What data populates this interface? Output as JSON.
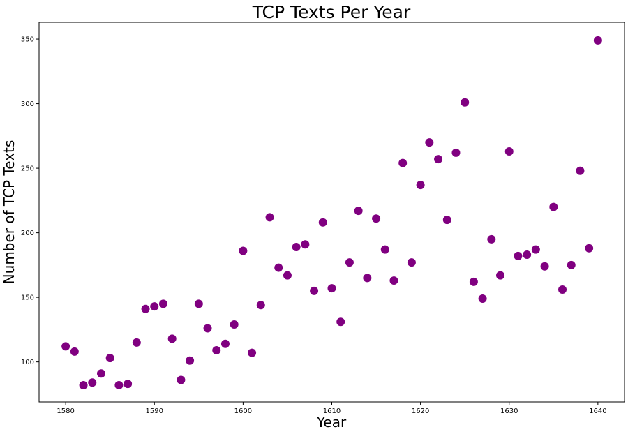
{
  "chart_data": {
    "type": "scatter",
    "title": "TCP Texts Per Year",
    "xlabel": "Year",
    "ylabel": "Number of TCP Texts",
    "xlim": [
      1577,
      1643
    ],
    "ylim": [
      69,
      363
    ],
    "xticks": [
      1580,
      1590,
      1600,
      1610,
      1620,
      1630,
      1640
    ],
    "yticks": [
      100,
      150,
      200,
      250,
      300,
      350
    ],
    "grid": false,
    "marker_color": "#800080",
    "points": [
      {
        "x": 1580,
        "y": 112
      },
      {
        "x": 1581,
        "y": 108
      },
      {
        "x": 1582,
        "y": 82
      },
      {
        "x": 1583,
        "y": 84
      },
      {
        "x": 1584,
        "y": 91
      },
      {
        "x": 1585,
        "y": 103
      },
      {
        "x": 1586,
        "y": 82
      },
      {
        "x": 1587,
        "y": 83
      },
      {
        "x": 1588,
        "y": 115
      },
      {
        "x": 1589,
        "y": 141
      },
      {
        "x": 1590,
        "y": 143
      },
      {
        "x": 1591,
        "y": 145
      },
      {
        "x": 1592,
        "y": 118
      },
      {
        "x": 1593,
        "y": 86
      },
      {
        "x": 1594,
        "y": 101
      },
      {
        "x": 1595,
        "y": 145
      },
      {
        "x": 1596,
        "y": 126
      },
      {
        "x": 1597,
        "y": 109
      },
      {
        "x": 1598,
        "y": 114
      },
      {
        "x": 1599,
        "y": 129
      },
      {
        "x": 1600,
        "y": 186
      },
      {
        "x": 1601,
        "y": 107
      },
      {
        "x": 1602,
        "y": 144
      },
      {
        "x": 1603,
        "y": 212
      },
      {
        "x": 1604,
        "y": 173
      },
      {
        "x": 1605,
        "y": 167
      },
      {
        "x": 1606,
        "y": 189
      },
      {
        "x": 1607,
        "y": 191
      },
      {
        "x": 1608,
        "y": 155
      },
      {
        "x": 1609,
        "y": 208
      },
      {
        "x": 1610,
        "y": 157
      },
      {
        "x": 1611,
        "y": 131
      },
      {
        "x": 1612,
        "y": 177
      },
      {
        "x": 1613,
        "y": 217
      },
      {
        "x": 1614,
        "y": 165
      },
      {
        "x": 1615,
        "y": 211
      },
      {
        "x": 1616,
        "y": 187
      },
      {
        "x": 1617,
        "y": 163
      },
      {
        "x": 1618,
        "y": 254
      },
      {
        "x": 1619,
        "y": 177
      },
      {
        "x": 1620,
        "y": 237
      },
      {
        "x": 1621,
        "y": 270
      },
      {
        "x": 1622,
        "y": 257
      },
      {
        "x": 1623,
        "y": 210
      },
      {
        "x": 1624,
        "y": 262
      },
      {
        "x": 1625,
        "y": 301
      },
      {
        "x": 1626,
        "y": 162
      },
      {
        "x": 1627,
        "y": 149
      },
      {
        "x": 1628,
        "y": 195
      },
      {
        "x": 1629,
        "y": 167
      },
      {
        "x": 1630,
        "y": 263
      },
      {
        "x": 1631,
        "y": 182
      },
      {
        "x": 1632,
        "y": 183
      },
      {
        "x": 1633,
        "y": 187
      },
      {
        "x": 1634,
        "y": 174
      },
      {
        "x": 1635,
        "y": 220
      },
      {
        "x": 1636,
        "y": 156
      },
      {
        "x": 1637,
        "y": 175
      },
      {
        "x": 1638,
        "y": 248
      },
      {
        "x": 1639,
        "y": 188
      },
      {
        "x": 1640,
        "y": 349
      }
    ]
  }
}
